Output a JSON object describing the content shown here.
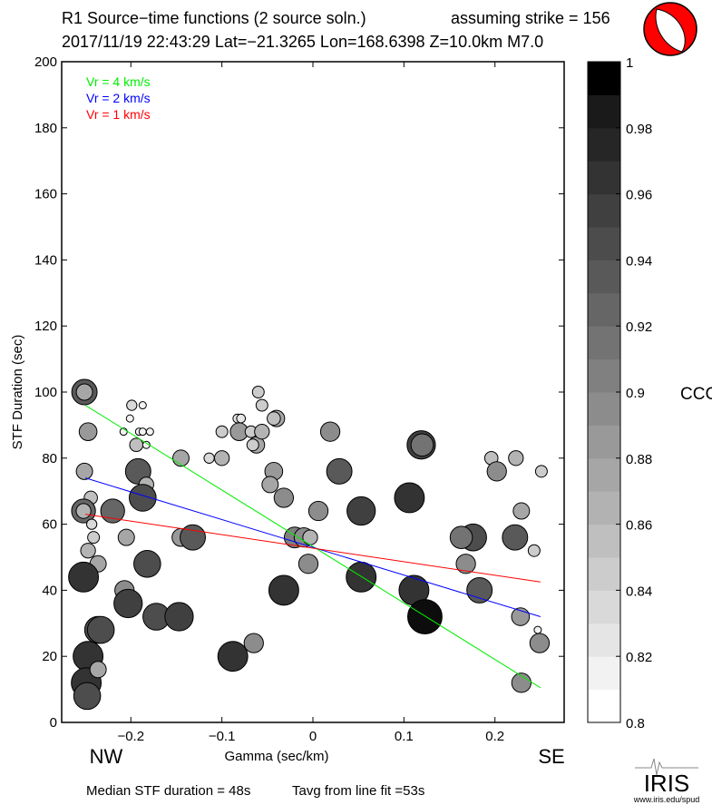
{
  "header": {
    "title": "R1 Source−time functions (2 source soln.)",
    "strike": "assuming strike = 156",
    "event": "2017/11/19 22:43:29  Lat=−21.3265 Lon=168.6398  Z=10.0km  M7.0"
  },
  "footer": {
    "median": "Median STF duration = 48s",
    "tavg": "Tavg from line fit =53s",
    "left_dir": "NW",
    "right_dir": "SE"
  },
  "logo": {
    "name": "IRIS",
    "url": "www.iris.edu/spud"
  },
  "colors": {
    "vr4": "#00ee00",
    "vr2": "#0000ff",
    "vr1": "#ff0000",
    "beachball": "#ff0000"
  },
  "chart_data": {
    "type": "scatter",
    "xlabel": "Gamma (sec/km)",
    "ylabel": "STF Duration (sec)",
    "xlim": [
      -0.276,
      0.276
    ],
    "ylim": [
      0,
      200
    ],
    "xticks": [
      -0.2,
      -0.1,
      0,
      0.1,
      0.2
    ],
    "xtick_labels": [
      "−0.2",
      "−0.1",
      "0",
      "0.1",
      "0.2"
    ],
    "yticks": [
      0,
      20,
      40,
      60,
      80,
      100,
      120,
      140,
      160,
      180,
      200
    ],
    "ytick_labels": [
      "0",
      "20",
      "40",
      "60",
      "80",
      "100",
      "120",
      "140",
      "160",
      "180",
      "200"
    ],
    "legend": [
      {
        "label": "Vr = 4 km/s",
        "color": "#00ee00",
        "x": [
          -0.25,
          0.25
        ],
        "y": [
          96,
          10.5
        ]
      },
      {
        "label": "Vr = 2 km/s",
        "color": "#0000ff",
        "x": [
          -0.25,
          0.25
        ],
        "y": [
          74,
          32
        ]
      },
      {
        "label": "Vr = 1 km/s",
        "color": "#ff0000",
        "x": [
          -0.25,
          0.25
        ],
        "y": [
          63,
          42.5
        ]
      }
    ],
    "legend_position": "top-left",
    "colorbar": {
      "label": "CCC",
      "range": [
        0.8,
        1.0
      ],
      "tick_labels": [
        "0.8",
        "0.82",
        "0.84",
        "0.86",
        "0.88",
        "0.9",
        "0.92",
        "0.94",
        "0.96",
        "0.98",
        "1"
      ]
    },
    "points_columns": [
      "gamma",
      "duration",
      "ccc"
    ],
    "points": [
      [
        -0.251,
        100,
        0.93
      ],
      [
        -0.251,
        100,
        0.87
      ],
      [
        -0.247,
        88,
        0.88
      ],
      [
        -0.251,
        76,
        0.87
      ],
      [
        -0.244,
        68,
        0.85
      ],
      [
        -0.252,
        64,
        0.92
      ],
      [
        -0.252,
        64,
        0.86
      ],
      [
        -0.243,
        60,
        0.83
      ],
      [
        -0.241,
        56,
        0.84
      ],
      [
        -0.247,
        52,
        0.86
      ],
      [
        -0.236,
        48,
        0.87
      ],
      [
        -0.252,
        44,
        0.96
      ],
      [
        -0.236,
        28,
        0.94
      ],
      [
        -0.233,
        28,
        0.94
      ],
      [
        -0.247,
        20,
        0.96
      ],
      [
        -0.249,
        12,
        0.96
      ],
      [
        -0.236,
        16,
        0.87
      ],
      [
        -0.248,
        8,
        0.94
      ],
      [
        -0.22,
        64,
        0.92
      ],
      [
        -0.205,
        56,
        0.87
      ],
      [
        -0.207,
        40,
        0.89
      ],
      [
        -0.203,
        36,
        0.95
      ],
      [
        -0.172,
        32,
        0.94
      ],
      [
        -0.147,
        32,
        0.95
      ],
      [
        -0.182,
        48,
        0.94
      ],
      [
        -0.192,
        76,
        0.93
      ],
      [
        -0.183,
        72,
        0.86
      ],
      [
        -0.187,
        68,
        0.94
      ],
      [
        -0.145,
        80,
        0.87
      ],
      [
        -0.145,
        56,
        0.88
      ],
      [
        -0.132,
        56,
        0.93
      ],
      [
        -0.199,
        96,
        0.83
      ],
      [
        -0.187,
        96,
        0.81
      ],
      [
        -0.201,
        92,
        0.81
      ],
      [
        -0.208,
        88,
        0.81
      ],
      [
        -0.191,
        88,
        0.81
      ],
      [
        -0.187,
        88,
        0.81
      ],
      [
        -0.179,
        88,
        0.81
      ],
      [
        -0.194,
        84,
        0.85
      ],
      [
        -0.183,
        84,
        0.81
      ],
      [
        -0.1,
        80,
        0.86
      ],
      [
        -0.114,
        80,
        0.83
      ],
      [
        -0.1,
        88,
        0.84
      ],
      [
        -0.06,
        100,
        0.84
      ],
      [
        -0.056,
        96,
        0.84
      ],
      [
        -0.083,
        92,
        0.82
      ],
      [
        -0.079,
        92,
        0.82
      ],
      [
        -0.081,
        88,
        0.88
      ],
      [
        -0.068,
        88,
        0.84
      ],
      [
        -0.062,
        84,
        0.87
      ],
      [
        -0.066,
        84,
        0.84
      ],
      [
        -0.056,
        88,
        0.86
      ],
      [
        -0.04,
        92,
        0.87
      ],
      [
        -0.043,
        92,
        0.85
      ],
      [
        -0.043,
        76,
        0.88
      ],
      [
        -0.047,
        72,
        0.87
      ],
      [
        -0.032,
        68,
        0.89
      ],
      [
        -0.088,
        20,
        0.96
      ],
      [
        -0.065,
        24,
        0.89
      ],
      [
        -0.032,
        40,
        0.96
      ],
      [
        -0.02,
        56,
        0.9
      ],
      [
        -0.01,
        56,
        0.89
      ],
      [
        -0.003,
        56,
        0.86
      ],
      [
        -0.005,
        48,
        0.89
      ],
      [
        0.006,
        64,
        0.89
      ],
      [
        0.019,
        88,
        0.89
      ],
      [
        0.029,
        76,
        0.93
      ],
      [
        0.053,
        64,
        0.95
      ],
      [
        0.053,
        44,
        0.96
      ],
      [
        0.106,
        68,
        0.96
      ],
      [
        0.111,
        40,
        0.96
      ],
      [
        0.119,
        84,
        0.95
      ],
      [
        0.12,
        84,
        0.91
      ],
      [
        0.123,
        32,
        0.99
      ],
      [
        0.176,
        56,
        0.94
      ],
      [
        0.163,
        56,
        0.91
      ],
      [
        0.168,
        48,
        0.89
      ],
      [
        0.183,
        40,
        0.93
      ],
      [
        0.196,
        80,
        0.85
      ],
      [
        0.202,
        76,
        0.89
      ],
      [
        0.223,
        80,
        0.86
      ],
      [
        0.222,
        56,
        0.93
      ],
      [
        0.229,
        64,
        0.87
      ],
      [
        0.228,
        32,
        0.88
      ],
      [
        0.243,
        52,
        0.84
      ],
      [
        0.247,
        28,
        0.81
      ],
      [
        0.249,
        24,
        0.89
      ],
      [
        0.229,
        12,
        0.89
      ],
      [
        0.251,
        76,
        0.84
      ]
    ]
  }
}
